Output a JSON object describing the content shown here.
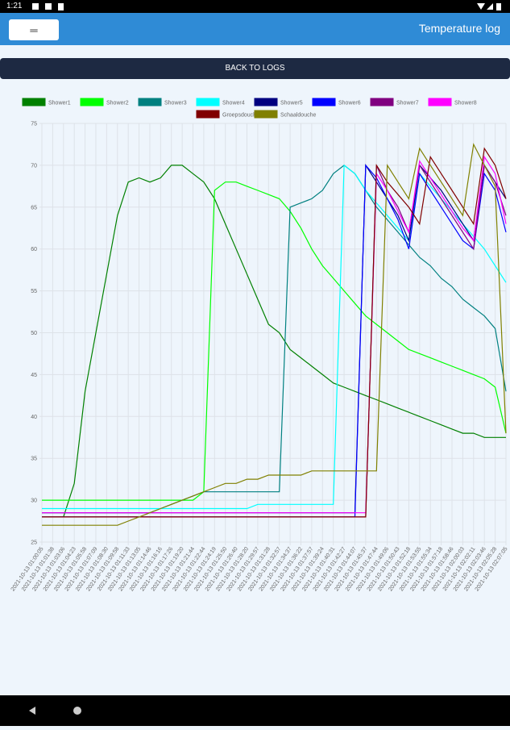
{
  "status_bar": {
    "time": "1:21"
  },
  "app_bar": {
    "menu_button": "═",
    "title": "Temperature log"
  },
  "back_button": "BACK TO LOGS",
  "chart_data": {
    "type": "line",
    "categories": [
      "2021-10-13 01:00:05",
      "2021-10-13 01:01:38",
      "2021-10-13 01:03:06",
      "2021-10-13 01:04:23",
      "2021-10-13 01:05:58",
      "2021-10-13 01:07:09",
      "2021-10-13 01:08:30",
      "2021-10-13 01:09:58",
      "2021-10-13 01:11:33",
      "2021-10-13 01:13:05",
      "2021-10-13 01:14:46",
      "2021-10-13 01:16:16",
      "2021-10-13 01:17:26",
      "2021-10-13 01:19:20",
      "2021-10-13 01:21:44",
      "2021-10-13 01:22:44",
      "2021-10-13 01:24:19",
      "2021-10-13 01:25:50",
      "2021-10-13 01:26:40",
      "2021-10-13 01:28:20",
      "2021-10-13 01:29:57",
      "2021-10-13 01:31:28",
      "2021-10-13 01:32:57",
      "2021-10-13 01:34:37",
      "2021-10-13 01:36:22",
      "2021-10-13 01:37:57",
      "2021-10-13 01:39:24",
      "2021-10-13 01:40:31",
      "2021-10-13 01:42:27",
      "2021-10-13 01:44:07",
      "2021-10-13 01:45:37",
      "2021-10-13 01:47:44",
      "2021-10-13 01:49:06",
      "2021-10-13 01:50:43",
      "2021-10-13 01:52:18",
      "2021-10-13 01:53:55",
      "2021-10-13 01:55:34",
      "2021-10-13 01:57:18",
      "2021-10-13 01:58:46",
      "2021-10-13 02:00:03",
      "2021-10-13 02:02:11",
      "2021-10-13 02:03:46",
      "2021-10-13 02:05:28",
      "2021-10-13 02:07:05"
    ],
    "series": [
      {
        "name": "Shower1",
        "color": "#008000",
        "values": [
          28,
          28,
          28,
          32,
          43,
          50,
          57,
          64,
          68,
          68.5,
          68,
          68.5,
          70,
          70,
          69,
          68,
          66,
          63,
          60,
          57,
          54,
          51,
          50,
          48,
          47,
          46,
          45,
          44,
          43.5,
          43,
          42.5,
          42,
          41.5,
          41,
          40.5,
          40,
          39.5,
          39,
          38.5,
          38,
          38,
          37.5,
          37.5,
          37.5
        ]
      },
      {
        "name": "Shower2",
        "color": "#00ff00",
        "values": [
          30,
          30,
          30,
          30,
          30,
          30,
          30,
          30,
          30,
          30,
          30,
          30,
          30,
          30,
          30,
          31,
          67,
          68,
          68,
          67.5,
          67,
          66.5,
          66,
          64.5,
          62.5,
          60,
          58,
          56.5,
          55,
          53.5,
          52,
          51,
          50,
          49,
          48,
          47.5,
          47,
          46.5,
          46,
          45.5,
          45,
          44.5,
          43.5,
          38
        ]
      },
      {
        "name": "Shower3",
        "color": "#008080",
        "values": [
          28.5,
          28.5,
          28.5,
          28.5,
          28.5,
          28.5,
          28.5,
          28.5,
          28.5,
          28.5,
          28.5,
          29,
          29.5,
          30,
          30.5,
          31,
          31,
          31,
          31,
          31,
          31,
          31,
          31,
          65,
          65.5,
          66,
          67,
          69,
          70,
          69,
          67,
          65,
          63.5,
          62,
          60.5,
          59,
          58,
          56.5,
          55.5,
          54,
          53,
          52,
          50.5,
          43
        ]
      },
      {
        "name": "Shower4",
        "color": "#00ffff",
        "values": [
          29,
          29,
          29,
          29,
          29,
          29,
          29,
          29,
          29,
          29,
          29,
          29,
          29,
          29,
          29,
          29,
          29,
          29,
          29,
          29,
          29.5,
          29.5,
          29.5,
          29.5,
          29.5,
          29.5,
          29.5,
          29.5,
          70,
          69,
          67,
          65.5,
          64,
          62.5,
          61,
          69,
          67.5,
          66,
          64.5,
          63,
          61.5,
          60,
          58,
          56
        ]
      },
      {
        "name": "Shower5",
        "color": "#000080",
        "values": [
          28.5,
          28.5,
          28.5,
          28.5,
          28.5,
          28.5,
          28.5,
          28.5,
          28.5,
          28.5,
          28.5,
          28.5,
          28.5,
          28.5,
          28.5,
          28.5,
          28.5,
          28.5,
          28.5,
          28.5,
          28.5,
          28.5,
          28.5,
          28.5,
          28.5,
          28.5,
          28.5,
          28.5,
          28.5,
          28.5,
          70,
          68,
          66,
          64,
          61,
          70,
          68.5,
          67,
          65,
          63,
          61,
          70,
          68,
          66
        ]
      },
      {
        "name": "Shower6",
        "color": "#0000ff",
        "values": [
          28,
          28,
          28,
          28,
          28,
          28,
          28,
          28,
          28,
          28,
          28,
          28,
          28,
          28,
          28,
          28,
          28,
          28,
          28,
          28,
          28,
          28,
          28,
          28,
          28,
          28,
          28,
          28,
          28,
          28,
          70,
          68.5,
          66,
          63.5,
          60,
          69,
          67,
          65,
          63,
          61,
          60,
          69,
          67,
          62
        ]
      },
      {
        "name": "Shower7",
        "color": "#800080",
        "values": [
          28,
          28,
          28,
          28,
          28,
          28,
          28,
          28,
          28,
          28,
          28,
          28,
          28,
          28,
          28,
          28,
          28,
          28,
          28,
          28,
          28,
          28,
          28,
          28,
          28,
          28,
          28,
          28,
          28,
          28,
          28,
          70,
          67,
          65,
          62,
          70,
          68,
          66,
          64,
          62,
          60,
          70,
          68,
          64
        ]
      },
      {
        "name": "Shower8",
        "color": "#ff00ff",
        "values": [
          28.5,
          28.5,
          28.5,
          28.5,
          28.5,
          28.5,
          28.5,
          28.5,
          28.5,
          28.5,
          28.5,
          28.5,
          28.5,
          28.5,
          28.5,
          28.5,
          28.5,
          28.5,
          28.5,
          28.5,
          28.5,
          28.5,
          28.5,
          28.5,
          28.5,
          28.5,
          28.5,
          28.5,
          28.5,
          28.5,
          28.5,
          69,
          67,
          64.5,
          62,
          70.5,
          68.5,
          66.5,
          64.5,
          62.5,
          61,
          71,
          69,
          63
        ]
      },
      {
        "name": "Groepsdouche",
        "color": "#800000",
        "values": [
          28,
          28,
          28,
          28,
          28,
          28,
          28,
          28,
          28,
          28,
          28,
          28,
          28,
          28,
          28,
          28,
          28,
          28,
          28,
          28,
          28,
          28,
          28,
          28,
          28,
          28,
          28,
          28,
          28,
          28,
          28,
          70,
          68,
          66.5,
          65,
          63,
          71,
          69,
          67,
          65,
          63,
          72,
          70,
          66
        ]
      },
      {
        "name": "Schaaldouche",
        "color": "#808000",
        "values": [
          27,
          27,
          27,
          27,
          27,
          27,
          27,
          27,
          27.5,
          28,
          28.5,
          29,
          29.5,
          30,
          30.5,
          31,
          31.5,
          32,
          32,
          32.5,
          32.5,
          33,
          33,
          33,
          33,
          33.5,
          33.5,
          33.5,
          33.5,
          33.5,
          33.5,
          33.5,
          70,
          68,
          66,
          72,
          70,
          68,
          66,
          64,
          72.5,
          70,
          67.5,
          38
        ]
      }
    ],
    "ylim": [
      25,
      75
    ],
    "yticks": [
      25,
      30,
      35,
      40,
      45,
      50,
      55,
      60,
      65,
      70,
      75
    ],
    "grid": true,
    "legend": "top"
  }
}
